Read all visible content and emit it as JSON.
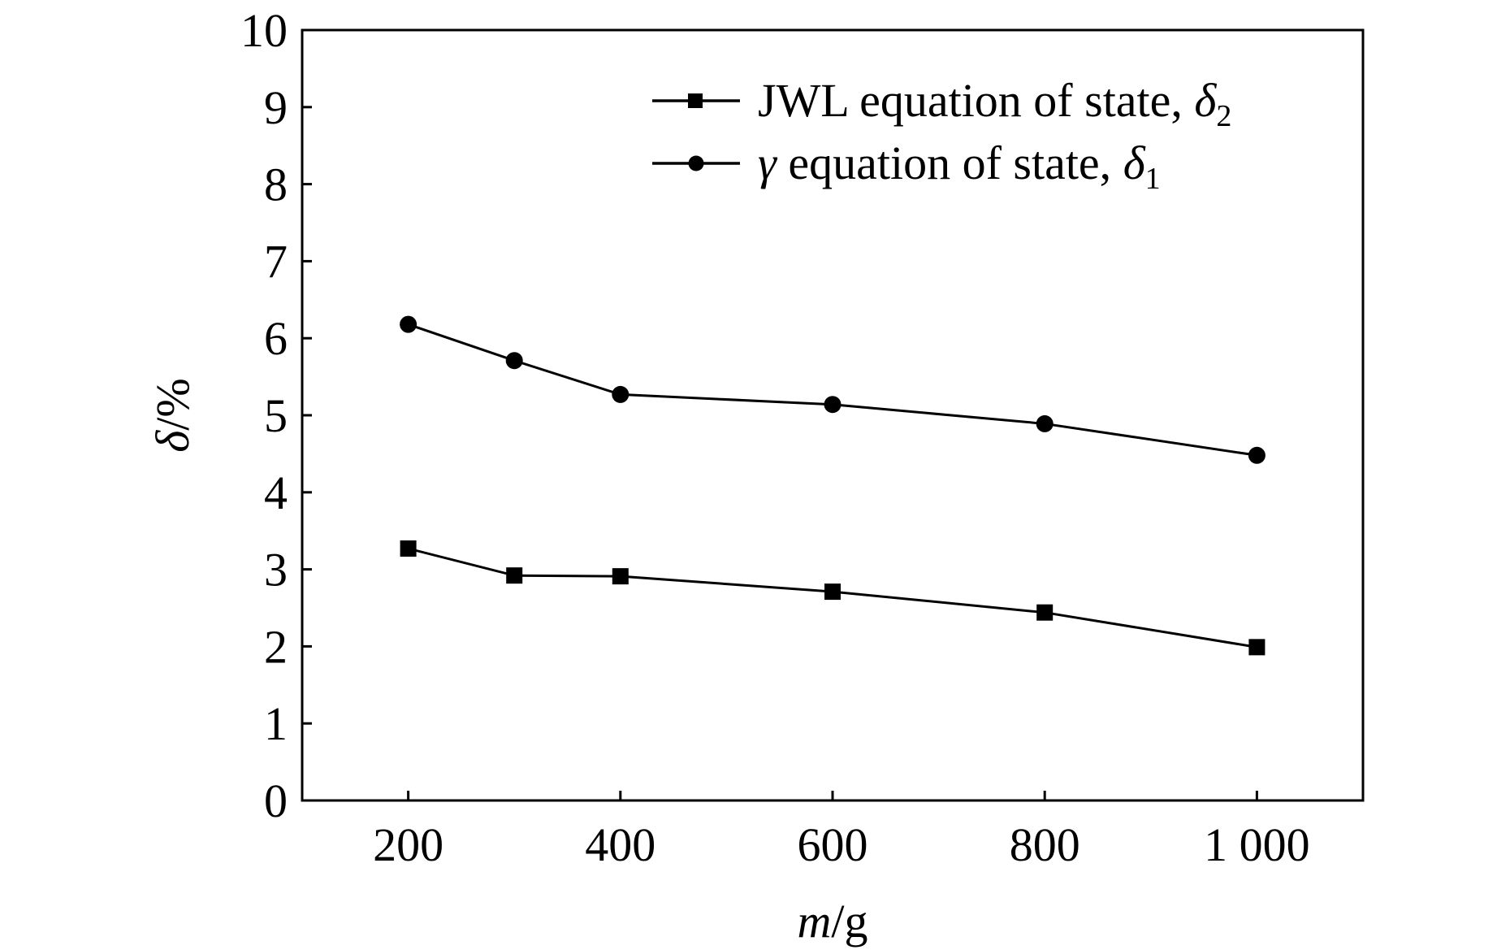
{
  "chart_data": {
    "type": "line",
    "x": [
      200,
      300,
      400,
      600,
      800,
      1000
    ],
    "x_tick_values": [
      200,
      400,
      600,
      800,
      1000
    ],
    "x_tick_labels": [
      "200",
      "400",
      "600",
      "800",
      "1 000"
    ],
    "xlim": [
      100,
      1100
    ],
    "ylim": [
      0,
      10
    ],
    "y_tick_values": [
      0,
      1,
      2,
      3,
      4,
      5,
      6,
      7,
      8,
      9,
      10
    ],
    "y_tick_labels": [
      "0",
      "1",
      "2",
      "3",
      "4",
      "5",
      "6",
      "7",
      "8",
      "9",
      "10"
    ],
    "xlabel": {
      "var": "m",
      "unit": "/g"
    },
    "ylabel": {
      "var": "δ",
      "unit": "/%"
    },
    "grid": false,
    "legend_position": "top-right",
    "series": [
      {
        "name": "JWL equation of state, δ2",
        "legend_prefix": "",
        "legend_text": "JWL equation of state, ",
        "legend_symbol": "δ",
        "legend_subscript": "2",
        "marker": "square",
        "color": "#000000",
        "values": [
          3.27,
          2.92,
          2.91,
          2.71,
          2.44,
          1.99
        ]
      },
      {
        "name": "γ equation of state, δ1",
        "legend_prefix": "γ",
        "legend_text": " equation of state, ",
        "legend_symbol": "δ",
        "legend_subscript": "1",
        "marker": "circle",
        "color": "#000000",
        "values": [
          6.18,
          5.71,
          5.27,
          5.14,
          4.89,
          4.48
        ]
      }
    ]
  }
}
